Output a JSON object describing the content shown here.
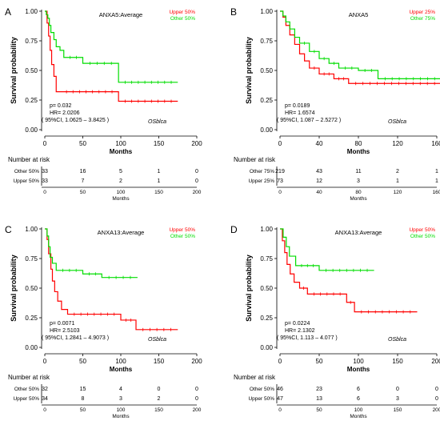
{
  "figure": {
    "panel_letters": [
      "A",
      "B",
      "C",
      "D"
    ]
  },
  "chart_data": [
    {
      "type": "line",
      "panel": "A",
      "title": "ANXA5:Average",
      "xlabel": "Months",
      "ylabel": "Survival probability",
      "xlim": [
        0,
        200
      ],
      "ylim": [
        0,
        1
      ],
      "xticks": [
        "0",
        "50",
        "100",
        "150",
        "200"
      ],
      "yticks": [
        "0.00",
        "0.25",
        "0.50",
        "0.75",
        "1.00"
      ],
      "legend": [
        "Upper 50%",
        "Other  50%"
      ],
      "stats": [
        "p= 0.032",
        "HR= 2.0206",
        "( 95%CI, 1.0625 – 3.8425 )"
      ],
      "source": "OSblca",
      "series": [
        {
          "name": "Upper 50%",
          "color": "#ff0000",
          "x": [
            0,
            3,
            5,
            7,
            9,
            12,
            15,
            20,
            97,
            175
          ],
          "y": [
            1.0,
            0.9,
            0.79,
            0.67,
            0.55,
            0.45,
            0.32,
            0.32,
            0.24,
            0.24
          ]
        },
        {
          "name": "Other  50%",
          "color": "#00dd00",
          "x": [
            0,
            2,
            4,
            6,
            8,
            12,
            15,
            20,
            25,
            50,
            97,
            175
          ],
          "y": [
            1.0,
            0.97,
            0.94,
            0.88,
            0.82,
            0.76,
            0.7,
            0.67,
            0.61,
            0.56,
            0.4,
            0.4
          ]
        }
      ],
      "risk_table": {
        "title": "Number at risk",
        "xticks": [
          "0",
          "50",
          "100",
          "150",
          "200"
        ],
        "xlabel": "Months",
        "rows": [
          {
            "label": "Other  50%",
            "counts": [
              "33",
              "16",
              "5",
              "1",
              "0"
            ]
          },
          {
            "label": "Upper 50%",
            "counts": [
              "33",
              "7",
              "2",
              "1",
              "0"
            ]
          }
        ]
      }
    },
    {
      "type": "line",
      "panel": "B",
      "title": "ANXA5",
      "xlabel": "Months",
      "ylabel": "Survival probability",
      "xlim": [
        0,
        160
      ],
      "ylim": [
        0,
        1
      ],
      "xticks": [
        "0",
        "40",
        "80",
        "120",
        "160"
      ],
      "yticks": [
        "0.00",
        "0.25",
        "0.50",
        "0.75",
        "1.00"
      ],
      "legend": [
        "Upper 25%",
        "Other  75%"
      ],
      "stats": [
        "p= 0.0189",
        "HR= 1.6574",
        "( 95%CI, 1.087 – 2.5272 )"
      ],
      "source": "OSblca",
      "series": [
        {
          "name": "Upper 25%",
          "color": "#ff0000",
          "x": [
            0,
            3,
            6,
            10,
            15,
            20,
            25,
            30,
            40,
            55,
            70,
            165
          ],
          "y": [
            1.0,
            0.95,
            0.88,
            0.8,
            0.72,
            0.64,
            0.58,
            0.52,
            0.47,
            0.43,
            0.39,
            0.39
          ]
        },
        {
          "name": "Other  75%",
          "color": "#00dd00",
          "x": [
            0,
            3,
            6,
            10,
            15,
            20,
            30,
            40,
            50,
            60,
            80,
            100,
            165
          ],
          "y": [
            1.0,
            0.96,
            0.91,
            0.85,
            0.78,
            0.73,
            0.66,
            0.6,
            0.56,
            0.52,
            0.5,
            0.43,
            0.43
          ]
        }
      ],
      "risk_table": {
        "title": "Number at risk",
        "xticks": [
          "0",
          "40",
          "80",
          "120",
          "160"
        ],
        "xlabel": "Months",
        "rows": [
          {
            "label": "Other  75%",
            "counts": [
              "219",
              "43",
              "11",
              "2",
              "1"
            ]
          },
          {
            "label": "Upper 25%",
            "counts": [
              "73",
              "12",
              "3",
              "1",
              "1"
            ]
          }
        ]
      }
    },
    {
      "type": "line",
      "panel": "C",
      "title": "ANXA13:Average",
      "xlabel": "Months",
      "ylabel": "Survival probability",
      "xlim": [
        0,
        200
      ],
      "ylim": [
        0,
        1
      ],
      "xticks": [
        "0",
        "50",
        "100",
        "150",
        "200"
      ],
      "yticks": [
        "0.00",
        "0.25",
        "0.50",
        "0.75",
        "1.00"
      ],
      "legend": [
        "Upper 50%",
        "Other  50%"
      ],
      "stats": [
        "p= 0.0071",
        "HR= 2.5103",
        "( 95%CI, 1.2841 – 4.9073 )"
      ],
      "source": "OSblca",
      "series": [
        {
          "name": "Upper 50%",
          "color": "#ff0000",
          "x": [
            0,
            3,
            5,
            8,
            10,
            13,
            17,
            22,
            30,
            100,
            120,
            175
          ],
          "y": [
            1.0,
            0.91,
            0.79,
            0.66,
            0.56,
            0.47,
            0.39,
            0.32,
            0.28,
            0.23,
            0.15,
            0.15
          ]
        },
        {
          "name": "Other  50%",
          "color": "#00dd00",
          "x": [
            0,
            3,
            5,
            7,
            10,
            15,
            50,
            75,
            122
          ],
          "y": [
            1.0,
            0.94,
            0.85,
            0.76,
            0.71,
            0.65,
            0.62,
            0.59,
            0.59
          ]
        }
      ],
      "risk_table": {
        "title": "Number at risk",
        "xticks": [
          "0",
          "50",
          "100",
          "150",
          "200"
        ],
        "xlabel": "Months",
        "rows": [
          {
            "label": "Other  50%",
            "counts": [
              "32",
              "15",
              "4",
              "0",
              "0"
            ]
          },
          {
            "label": "Upper 50%",
            "counts": [
              "34",
              "8",
              "3",
              "2",
              "0"
            ]
          }
        ]
      }
    },
    {
      "type": "line",
      "panel": "D",
      "title": "ANXA13:Average",
      "xlabel": "Months",
      "ylabel": "Survival probability",
      "xlim": [
        0,
        200
      ],
      "ylim": [
        0,
        1
      ],
      "xticks": [
        "0",
        "50",
        "100",
        "150",
        "200"
      ],
      "yticks": [
        "0.00",
        "0.25",
        "0.50",
        "0.75",
        "1.00"
      ],
      "legend": [
        "Upper 50%",
        "Other  50%"
      ],
      "stats": [
        "p= 0.0224",
        "HR= 2.1302",
        "( 95%CI, 1.113 – 4.077 )"
      ],
      "source": "OSblca",
      "series": [
        {
          "name": "Upper 50%",
          "color": "#ff0000",
          "x": [
            0,
            3,
            6,
            9,
            13,
            18,
            25,
            35,
            85,
            95,
            175
          ],
          "y": [
            1.0,
            0.9,
            0.8,
            0.7,
            0.62,
            0.55,
            0.5,
            0.45,
            0.38,
            0.3,
            0.3
          ]
        },
        {
          "name": "Other  50%",
          "color": "#00dd00",
          "x": [
            0,
            4,
            8,
            12,
            20,
            50,
            120
          ],
          "y": [
            1.0,
            0.93,
            0.85,
            0.77,
            0.69,
            0.65,
            0.65
          ]
        }
      ],
      "risk_table": {
        "title": "Number at risk",
        "xticks": [
          "0",
          "50",
          "100",
          "150",
          "200"
        ],
        "xlabel": "Months",
        "rows": [
          {
            "label": "Other  50%",
            "counts": [
              "46",
              "23",
              "6",
              "0",
              "0"
            ]
          },
          {
            "label": "Upper 50%",
            "counts": [
              "47",
              "13",
              "6",
              "3",
              "0"
            ]
          }
        ]
      }
    }
  ]
}
